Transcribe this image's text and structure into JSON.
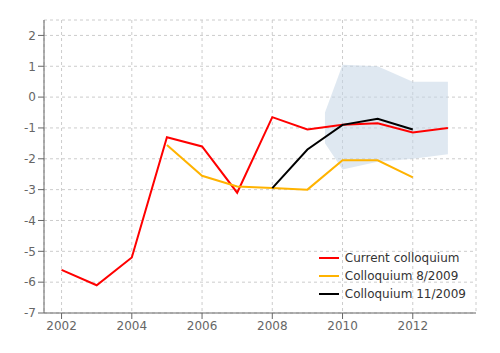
{
  "chart_data": {
    "type": "line",
    "xlim": [
      2001.5,
      2013.8
    ],
    "ylim": [
      -7,
      2.5
    ],
    "xticks": [
      2002,
      2004,
      2006,
      2008,
      2010,
      2012
    ],
    "yticks": [
      -7,
      -6,
      -5,
      -4,
      -3,
      -2,
      -1,
      0,
      1,
      2
    ],
    "grid": true,
    "legend": "lower right",
    "series": [
      {
        "name": "Current colloquium",
        "color": "#FF0000",
        "x": [
          2002,
          2003,
          2004,
          2005,
          2006,
          2007,
          2008,
          2009,
          2010,
          2011,
          2012,
          2013
        ],
        "values": [
          -5.6,
          -6.1,
          -5.2,
          -1.3,
          -1.6,
          -3.1,
          -0.65,
          -1.05,
          -0.9,
          -0.85,
          -1.15,
          -1.0
        ]
      },
      {
        "name": "Colloquium 8/2009",
        "color": "#FFB300",
        "x": [
          2005,
          2006,
          2007,
          2008,
          2009,
          2010,
          2011,
          2012
        ],
        "values": [
          -1.55,
          -2.55,
          -2.9,
          -2.95,
          -3.0,
          -2.05,
          -2.05,
          -2.6
        ]
      },
      {
        "name": "Colloquium 11/2009",
        "color": "#000000",
        "x": [
          2008,
          2009,
          2010,
          2011,
          2012
        ],
        "values": [
          -2.95,
          -1.7,
          -0.9,
          -0.7,
          -1.05
        ]
      }
    ],
    "band": {
      "x": [
        2009.5,
        2010,
        2011,
        2012,
        2013
      ],
      "upper": [
        -0.5,
        1.05,
        1.0,
        0.5,
        0.5
      ],
      "lower": [
        -1.5,
        -2.35,
        -2.1,
        -2.0,
        -1.85
      ],
      "color": "#C5D5E5"
    }
  }
}
